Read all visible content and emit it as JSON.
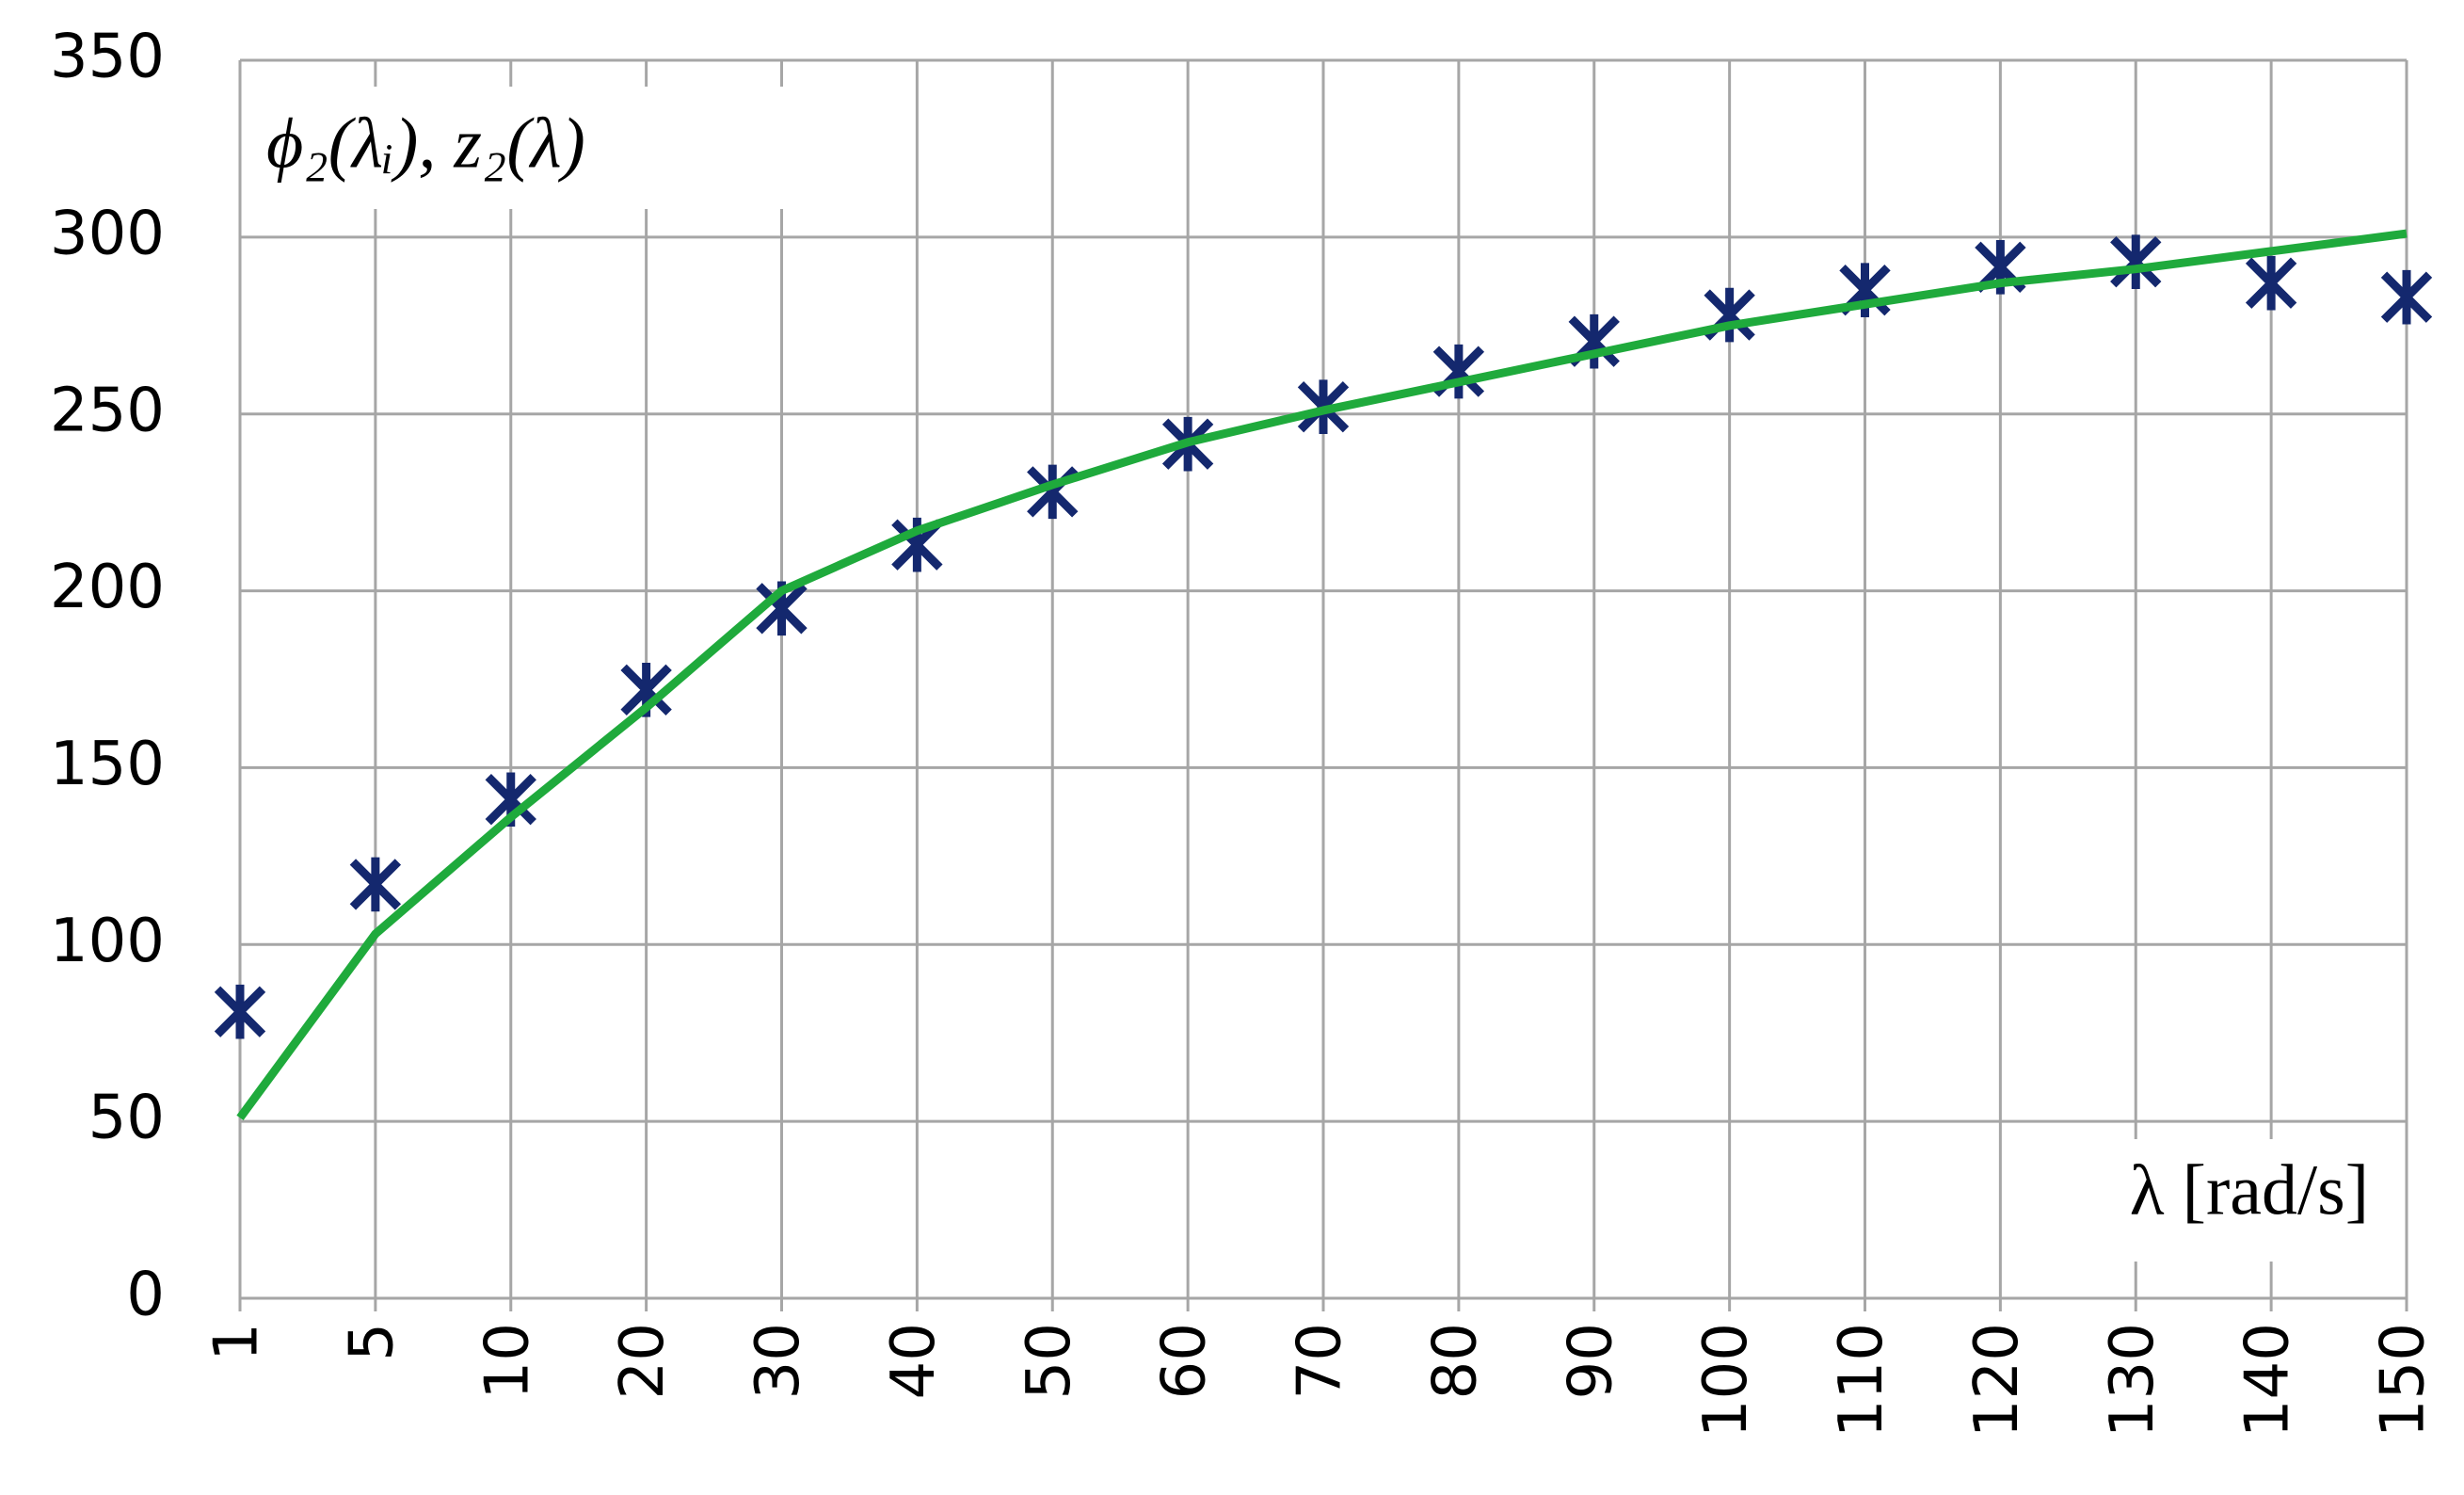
{
  "chart_data": {
    "type": "line",
    "y_label": "ϕ₂(λᵢ), z₂(λ)",
    "x_label": "λ [rad/s]",
    "categories": [
      "1",
      "5",
      "10",
      "20",
      "30",
      "40",
      "50",
      "60",
      "70",
      "80",
      "90",
      "100",
      "110",
      "120",
      "130",
      "140",
      "150"
    ],
    "series": [
      {
        "color": "#14286e",
        "marker": "asterisk",
        "line": false,
        "values": [
          81,
          117,
          141,
          172,
          195,
          213,
          228,
          241.5,
          252,
          262,
          270.5,
          278,
          285,
          291.5,
          293,
          287,
          283
        ]
      },
      {
        "color": "#1faa3c",
        "marker": "none",
        "line": true,
        "values": [
          51,
          103,
          136,
          167,
          200,
          217,
          230,
          242,
          251,
          259,
          267,
          275,
          281,
          287,
          291,
          296,
          301
        ]
      }
    ],
    "ylim": [
      0,
      350
    ],
    "yticks": [
      0,
      50,
      100,
      150,
      200,
      250,
      300,
      350
    ],
    "grid": true
  }
}
